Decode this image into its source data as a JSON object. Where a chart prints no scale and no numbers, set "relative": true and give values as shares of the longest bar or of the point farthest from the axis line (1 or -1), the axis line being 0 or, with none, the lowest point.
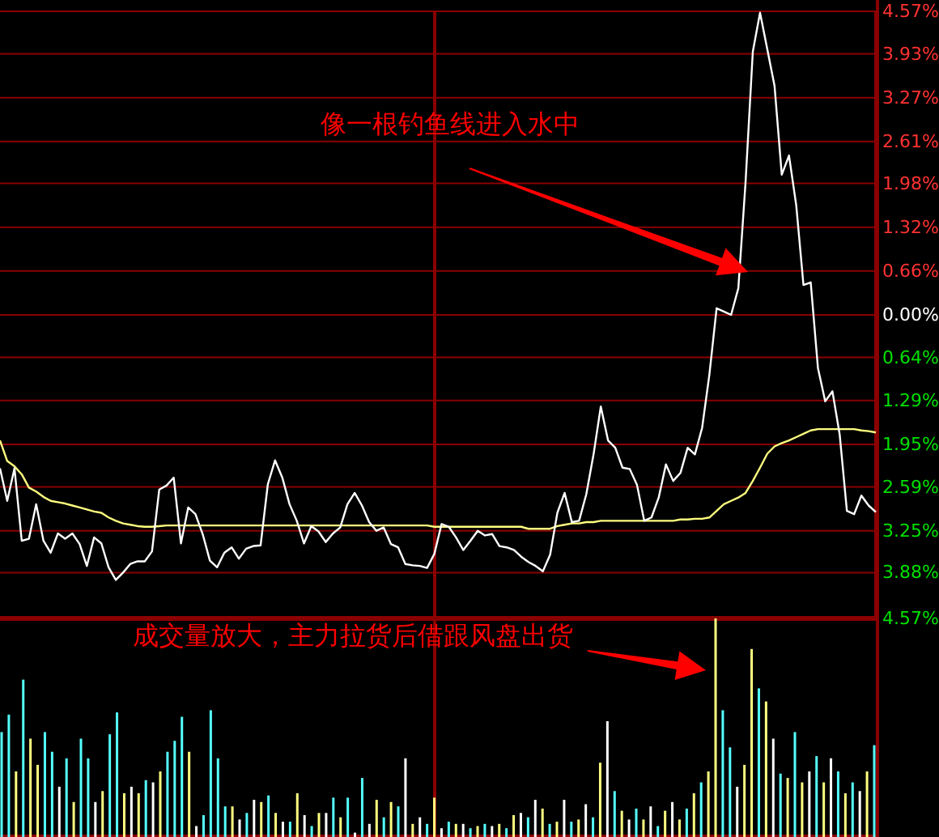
{
  "chart_data": [
    {
      "type": "line",
      "categories": [
        null,
        null,
        null,
        null,
        null,
        null,
        null,
        null,
        null,
        null,
        null,
        null,
        null,
        null,
        null,
        null,
        null,
        null,
        null,
        null,
        null,
        null,
        null,
        null,
        null,
        null,
        null,
        null,
        null,
        null,
        null,
        null,
        null,
        null,
        null,
        null,
        null,
        null,
        null,
        null,
        null,
        null,
        null,
        null,
        null,
        null,
        null,
        null,
        null,
        null,
        null,
        null,
        null,
        null,
        null,
        null,
        null,
        null,
        null,
        null,
        null,
        null,
        null,
        null,
        null,
        null,
        null,
        null,
        null,
        null,
        null,
        null,
        null,
        null,
        null,
        null,
        null,
        null,
        null,
        null,
        null,
        null,
        null,
        null,
        null,
        null,
        null,
        null,
        null,
        null,
        null,
        null,
        null,
        null,
        null,
        null,
        null,
        null,
        null,
        null,
        null,
        null,
        null,
        null,
        null,
        null,
        null,
        null,
        null,
        null,
        null,
        null,
        null,
        null,
        null,
        null,
        null,
        null,
        null,
        null,
        null,
        null
      ],
      "series": [
        {
          "color": "#ffffff",
          "values": [
            -2.31,
            -2.8,
            -2.31,
            -3.4,
            -3.37,
            -2.85,
            -3.4,
            -3.58,
            -3.29,
            -3.37,
            -3.29,
            -3.45,
            -3.78,
            -3.35,
            -3.44,
            -3.8,
            -3.99,
            -3.88,
            -3.75,
            -3.71,
            -3.71,
            -3.56,
            -2.63,
            -2.57,
            -2.45,
            -3.44,
            -2.9,
            -3.0,
            -3.3,
            -3.7,
            -3.8,
            -3.58,
            -3.5,
            -3.67,
            -3.52,
            -3.48,
            -3.47,
            -2.55,
            -2.19,
            -2.45,
            -2.85,
            -3.1,
            -3.44,
            -3.18,
            -3.26,
            -3.42,
            -3.29,
            -3.2,
            -2.85,
            -2.68,
            -2.87,
            -3.12,
            -3.25,
            -3.2,
            -3.45,
            -3.5,
            -3.75,
            -3.77,
            -3.78,
            -3.81,
            -3.6,
            -3.15,
            -3.19,
            -3.35,
            -3.54,
            -3.4,
            -3.25,
            -3.32,
            -3.3,
            -3.48,
            -3.5,
            -3.54,
            -3.64,
            -3.72,
            -3.78,
            -3.86,
            -3.61,
            -2.98,
            -2.68,
            -3.12,
            -3.1,
            -2.7,
            -2.1,
            -1.38,
            -1.89,
            -2.0,
            -2.3,
            -2.32,
            -2.56,
            -3.1,
            -3.05,
            -2.75,
            -2.25,
            -2.5,
            -2.38,
            -2.0,
            -2.1,
            -1.7,
            -0.9,
            0.1,
            0.05,
            0.0,
            0.4,
            2.0,
            3.96,
            4.55,
            4.0,
            3.45,
            2.11,
            2.4,
            1.65,
            0.45,
            0.49,
            -0.8,
            -1.3,
            -1.15,
            -1.8,
            -2.95,
            -3.0,
            -2.72,
            -2.87,
            -2.97
          ]
        },
        {
          "color": "#ffff80",
          "values": [
            -1.89,
            -2.2,
            -2.28,
            -2.4,
            -2.6,
            -2.66,
            -2.74,
            -2.8,
            -2.82,
            -2.84,
            -2.87,
            -2.9,
            -2.93,
            -2.96,
            -2.98,
            -3.05,
            -3.1,
            -3.14,
            -3.16,
            -3.18,
            -3.19,
            -3.19,
            -3.18,
            -3.17,
            -3.17,
            -3.17,
            -3.17,
            -3.17,
            -3.17,
            -3.17,
            -3.17,
            -3.17,
            -3.17,
            -3.17,
            -3.17,
            -3.17,
            -3.17,
            -3.17,
            -3.17,
            -3.17,
            -3.17,
            -3.17,
            -3.17,
            -3.17,
            -3.17,
            -3.17,
            -3.17,
            -3.17,
            -3.17,
            -3.17,
            -3.17,
            -3.17,
            -3.17,
            -3.17,
            -3.17,
            -3.17,
            -3.17,
            -3.17,
            -3.17,
            -3.17,
            -3.19,
            -3.19,
            -3.19,
            -3.19,
            -3.19,
            -3.19,
            -3.19,
            -3.19,
            -3.19,
            -3.19,
            -3.19,
            -3.19,
            -3.19,
            -3.22,
            -3.22,
            -3.22,
            -3.22,
            -3.18,
            -3.16,
            -3.14,
            -3.14,
            -3.12,
            -3.12,
            -3.1,
            -3.1,
            -3.1,
            -3.1,
            -3.1,
            -3.1,
            -3.1,
            -3.1,
            -3.1,
            -3.1,
            -3.1,
            -3.08,
            -3.08,
            -3.07,
            -3.07,
            -3.05,
            -2.95,
            -2.85,
            -2.8,
            -2.75,
            -2.68,
            -2.5,
            -2.3,
            -2.09,
            -1.98,
            -1.93,
            -1.89,
            -1.84,
            -1.79,
            -1.74,
            -1.72,
            -1.72,
            -1.72,
            -1.72,
            -1.72,
            -1.72,
            -1.74,
            -1.75,
            -1.77
          ]
        }
      ],
      "ylim": [
        -4.57,
        4.57
      ],
      "yticks": [
        {
          "value": 4.57,
          "label": "4.57%"
        },
        {
          "value": 3.93,
          "label": "3.93%"
        },
        {
          "value": 3.27,
          "label": "3.27%"
        },
        {
          "value": 2.61,
          "label": "2.61%"
        },
        {
          "value": 1.98,
          "label": "1.98%"
        },
        {
          "value": 1.32,
          "label": "1.32%"
        },
        {
          "value": 0.66,
          "label": "0.66%"
        },
        {
          "value": 0,
          "label": "0.00%"
        },
        {
          "value": -0.64,
          "label": "0.64%"
        },
        {
          "value": -1.29,
          "label": "1.29%"
        },
        {
          "value": -1.95,
          "label": "1.95%"
        },
        {
          "value": -2.59,
          "label": "2.59%"
        },
        {
          "value": -3.25,
          "label": "3.25%"
        },
        {
          "value": -3.88,
          "label": "3.88%"
        },
        {
          "value": -4.57,
          "label": "4.57%"
        }
      ],
      "tick_labels": "y",
      "grid": "y",
      "line_style": "solid",
      "marker": "none",
      "annotations": [
        "像一根钓鱼线进入水中"
      ]
    },
    {
      "type": "bar",
      "relative": true,
      "categories": [
        null,
        null,
        null,
        null,
        null,
        null,
        null,
        null,
        null,
        null,
        null,
        null,
        null,
        null,
        null,
        null,
        null,
        null,
        null,
        null,
        null,
        null,
        null,
        null,
        null,
        null,
        null,
        null,
        null,
        null,
        null,
        null,
        null,
        null,
        null,
        null,
        null,
        null,
        null,
        null,
        null,
        null,
        null,
        null,
        null,
        null,
        null,
        null,
        null,
        null,
        null,
        null,
        null,
        null,
        null,
        null,
        null,
        null,
        null,
        null,
        null,
        null,
        null,
        null,
        null,
        null,
        null,
        null,
        null,
        null,
        null,
        null,
        null,
        null,
        null,
        null,
        null,
        null,
        null,
        null,
        null,
        null,
        null,
        null,
        null,
        null,
        null,
        null,
        null,
        null,
        null,
        null,
        null,
        null,
        null,
        null,
        null,
        null,
        null,
        null,
        null,
        null,
        null,
        null,
        null,
        null,
        null,
        null,
        null,
        null,
        null,
        null,
        null,
        null,
        null,
        null,
        null,
        null,
        null,
        null,
        null,
        null
      ],
      "values": [
        0.48,
        0.56,
        0.3,
        0.72,
        0.45,
        0.33,
        0.48,
        0.39,
        0.23,
        0.36,
        0.16,
        0.45,
        0.36,
        0.16,
        0.21,
        0.47,
        0.57,
        0.2,
        0.23,
        0.2,
        0.26,
        0.25,
        0.3,
        0.39,
        0.44,
        0.55,
        0.39,
        0.05,
        0.1,
        0.58,
        0.36,
        0.14,
        0.14,
        0.08,
        0.11,
        0.17,
        0.16,
        0.19,
        0.11,
        0.07,
        0.07,
        0.2,
        0.1,
        0.05,
        0.11,
        0.11,
        0.18,
        0.09,
        0.18,
        0.02,
        0.27,
        0.06,
        0.17,
        0.09,
        0.16,
        0.14,
        0.36,
        0.06,
        0.09,
        0.06,
        0.18,
        0.04,
        0.07,
        0.06,
        0.06,
        0.04,
        0.05,
        0.06,
        0.05,
        0.06,
        0.04,
        0.1,
        0.11,
        0.09,
        0.17,
        0.13,
        0.06,
        0.07,
        0.17,
        0.07,
        0.08,
        0.15,
        0.09,
        0.34,
        0.53,
        0.21,
        0.12,
        0.08,
        0.13,
        0.08,
        0.14,
        0.05,
        0.12,
        0.16,
        0.08,
        0.13,
        0.2,
        0.25,
        0.3,
        1,
        0.58,
        0.41,
        0.23,
        0.33,
        0.86,
        0.68,
        0.62,
        0.45,
        0.29,
        0.27,
        0.48,
        0.25,
        0.3,
        0.37,
        0.25,
        0.36,
        0.3,
        0.2,
        0.25,
        0.21,
        0.3,
        0.42
      ],
      "colors": [
        "#55ffff",
        "#55ffff",
        "#ffff80",
        "#55ffff",
        "#ffff80",
        "#ffff80",
        "#55ffff",
        "#55ffff",
        "#ffffff",
        "#55ffff",
        "#ffff80",
        "#55ffff",
        "#55ffff",
        "#ffffff",
        "#ffff80",
        "#55ffff",
        "#55ffff",
        "#ffff80",
        "#ffffff",
        "#ffff80",
        "#55ffff",
        "#ffffff",
        "#ffff80",
        "#55ffff",
        "#55ffff",
        "#55ffff",
        "#ffff80",
        "#ffffff",
        "#55ffff",
        "#55ffff",
        "#55ffff",
        "#55ffff",
        "#ffff80",
        "#ffffff",
        "#55ffff",
        "#ffffff",
        "#ffff80",
        "#55ffff",
        "#ffff80",
        "#ffffff",
        "#55ffff",
        "#ffff80",
        "#ffffff",
        "#55ffff",
        "#ffff80",
        "#ffffff",
        "#55ffff",
        "#ffff80",
        "#55ffff",
        "#ffffff",
        "#55ffff",
        "#ffffff",
        "#ffff80",
        "#55ffff",
        "#ffff80",
        "#55ffff",
        "#ffffff",
        "#ffff80",
        "#ffffff",
        "#55ffff",
        "#ffff80",
        "#ffffff",
        "#55ffff",
        "#ffff80",
        "#ffffff",
        "#55ffff",
        "#ffff80",
        "#55ffff",
        "#ffffff",
        "#ffff80",
        "#55ffff",
        "#ffff80",
        "#ffffff",
        "#55ffff",
        "#ffffff",
        "#ffff80",
        "#55ffff",
        "#ffff80",
        "#ffffff",
        "#55ffff",
        "#ffff80",
        "#ffffff",
        "#55ffff",
        "#ffff80",
        "#ffffff",
        "#55ffff",
        "#ffff80",
        "#ffffff",
        "#55ffff",
        "#ffff80",
        "#ffffff",
        "#55ffff",
        "#ffff80",
        "#ffffff",
        "#ffff80",
        "#55ffff",
        "#ffff80",
        "#55ffff",
        "#ffff80",
        "#ffff80",
        "#55ffff",
        "#55ffff",
        "#ffffff",
        "#ffff80",
        "#ffff80",
        "#55ffff",
        "#ffff80",
        "#ffffff",
        "#55ffff",
        "#ffff80",
        "#55ffff",
        "#ffff80",
        "#ffffff",
        "#55ffff",
        "#ffff80",
        "#ffffff",
        "#55ffff",
        "#ffff80",
        "#55ffff",
        "#ffffff",
        "#ffff80",
        "#55ffff"
      ],
      "annotations": [
        "成交量放大，主力拉货后借跟风盘出货"
      ]
    }
  ]
}
